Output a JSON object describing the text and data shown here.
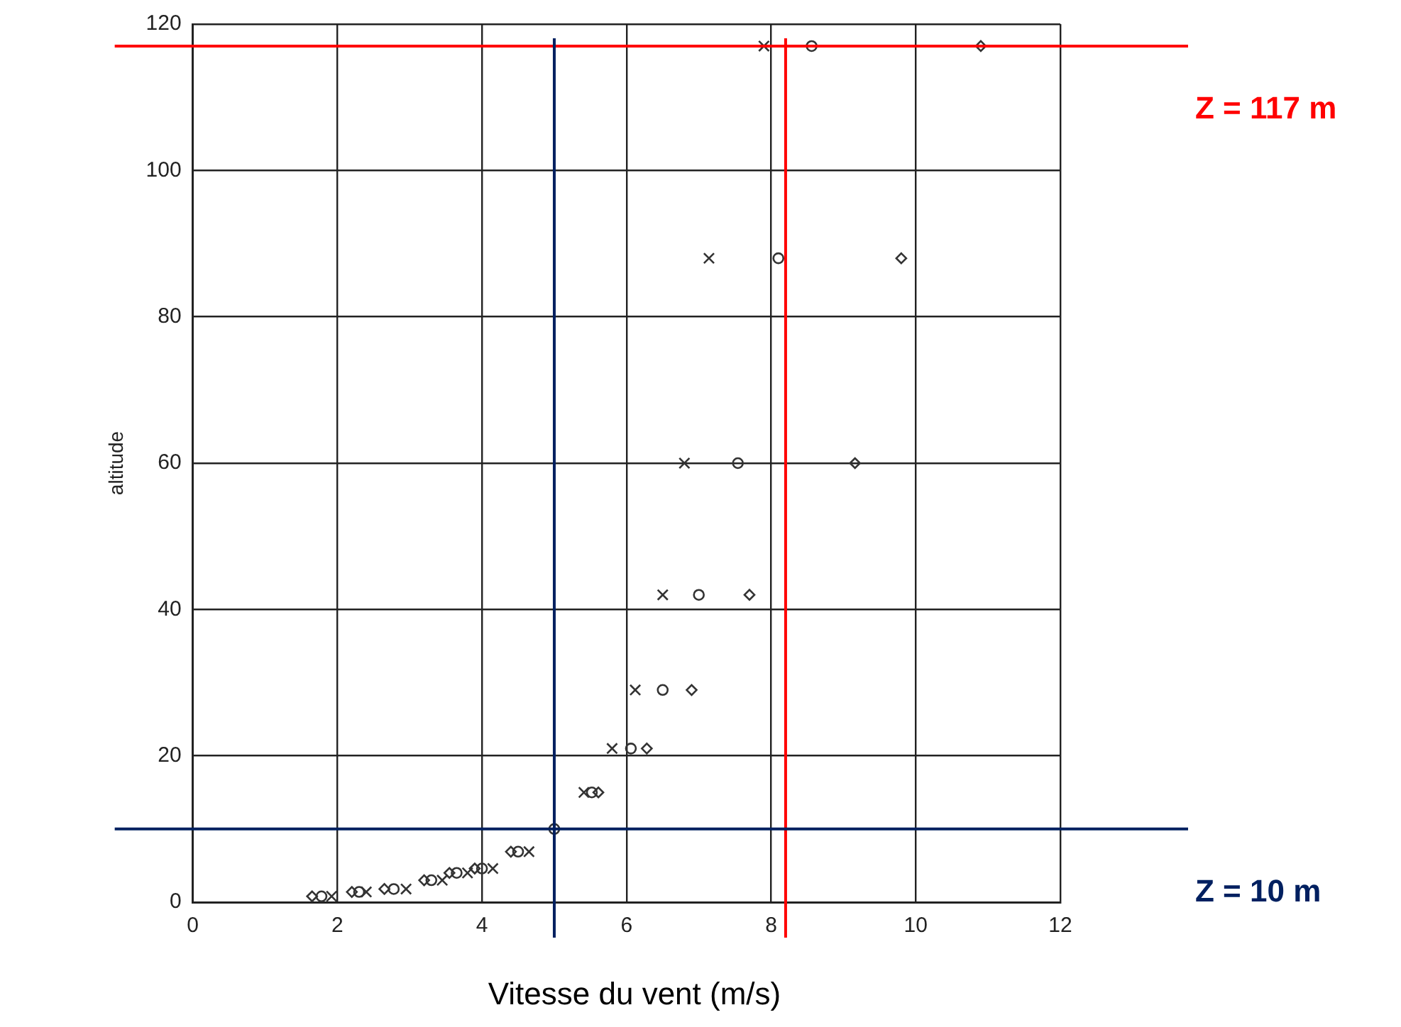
{
  "chart_data": {
    "type": "scatter",
    "xlabel": "Vitesse du vent (m/s)",
    "ylabel": "altitude",
    "xlim": [
      0,
      12
    ],
    "xticks": [
      0,
      2,
      4,
      6,
      8,
      10,
      12
    ],
    "ylim": [
      0,
      120
    ],
    "yticks": [
      0,
      20,
      40,
      60,
      80,
      100,
      120
    ],
    "grid": true,
    "series": [
      {
        "color": "#333333",
        "marker": "cross",
        "x": [
          1.92,
          2.4,
          2.95,
          3.45,
          3.8,
          4.15,
          4.65,
          5,
          5.41,
          5.8,
          6.12,
          6.5,
          6.8,
          7.14,
          7.9
        ],
        "values": [
          0.8,
          1.4,
          1.8,
          3,
          4,
          4.6,
          6.9,
          null,
          15,
          21,
          29,
          42,
          60,
          88,
          117
        ]
      },
      {
        "color": "#333333",
        "marker": "circle",
        "x": [
          1.78,
          2.3,
          2.78,
          3.3,
          3.65,
          4.0,
          4.5,
          5,
          5.52,
          6.06,
          6.5,
          7.0,
          7.54,
          8.1,
          8.56
        ],
        "values": [
          0.8,
          1.4,
          1.8,
          3,
          4,
          4.6,
          6.9,
          10,
          15,
          21,
          29,
          42,
          60,
          88,
          117
        ]
      },
      {
        "color": "#333333",
        "marker": "diamond",
        "x": [
          1.65,
          2.2,
          2.65,
          3.2,
          3.55,
          3.9,
          4.4,
          5,
          5.61,
          6.28,
          6.9,
          7.7,
          9.16,
          9.8,
          10.9
        ],
        "values": [
          0.8,
          1.4,
          1.8,
          3,
          4,
          4.6,
          6.9,
          null,
          15,
          21,
          29,
          42,
          60,
          88,
          117
        ]
      }
    ],
    "ref_lines": [
      {
        "axis": "y",
        "value": 117,
        "label": "Z = 117 m",
        "color": "#ff0000"
      },
      {
        "axis": "x",
        "value": 8.2,
        "color": "#ff0000"
      },
      {
        "axis": "y",
        "value": 10,
        "label": "Z = 10 m",
        "color": "#002060"
      },
      {
        "axis": "x",
        "value": 5,
        "color": "#002060"
      }
    ]
  }
}
